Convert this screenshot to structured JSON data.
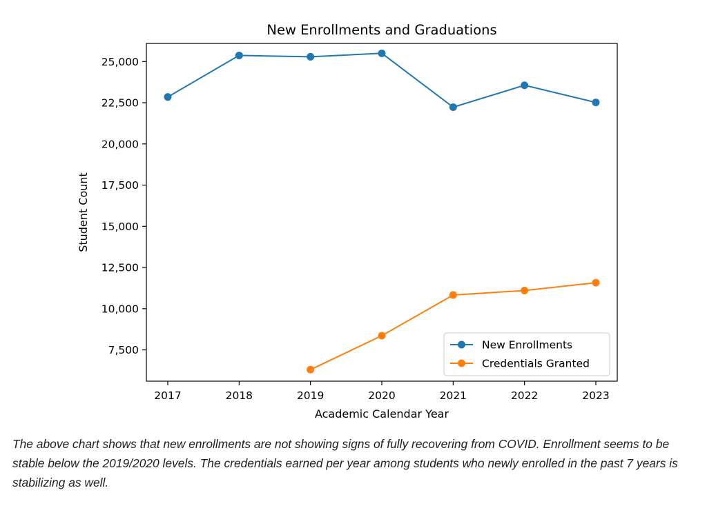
{
  "chart_data": {
    "type": "line",
    "title": "New Enrollments and Graduations",
    "xlabel": "Academic Calendar Year",
    "ylabel": "Student Count",
    "x": [
      2017,
      2018,
      2019,
      2020,
      2021,
      2022,
      2023
    ],
    "x_tick_labels": [
      "2017",
      "2018",
      "2019",
      "2020",
      "2021",
      "2022",
      "2023"
    ],
    "y_ticks": [
      7500,
      10000,
      12500,
      15000,
      17500,
      20000,
      22500,
      25000
    ],
    "y_tick_labels": [
      "7,500",
      "10,000",
      "12,500",
      "15,000",
      "17,500",
      "20,000",
      "22,500",
      "25,000"
    ],
    "xlim": [
      2016.7,
      2023.3
    ],
    "ylim": [
      5600,
      26100
    ],
    "grid": false,
    "legend_position": "lower-right",
    "series": [
      {
        "name": "New Enrollments",
        "color": "#1f77b4",
        "marker": "circle",
        "x": [
          2017,
          2018,
          2019,
          2020,
          2021,
          2022,
          2023
        ],
        "values": [
          22850,
          25370,
          25290,
          25500,
          22230,
          23560,
          22520
        ]
      },
      {
        "name": "Credentials Granted",
        "color": "#ff7f0e",
        "marker": "circle",
        "x": [
          2019,
          2020,
          2021,
          2022,
          2023
        ],
        "values": [
          6300,
          8360,
          10830,
          11100,
          11580
        ]
      }
    ]
  },
  "caption": "The above chart shows that new enrollments are not showing signs of fully recovering from COVID. Enrollment seems to be stable below the 2019/2020 levels. The credentials earned per year among students who newly enrolled in the past 7 years is stabilizing as well."
}
